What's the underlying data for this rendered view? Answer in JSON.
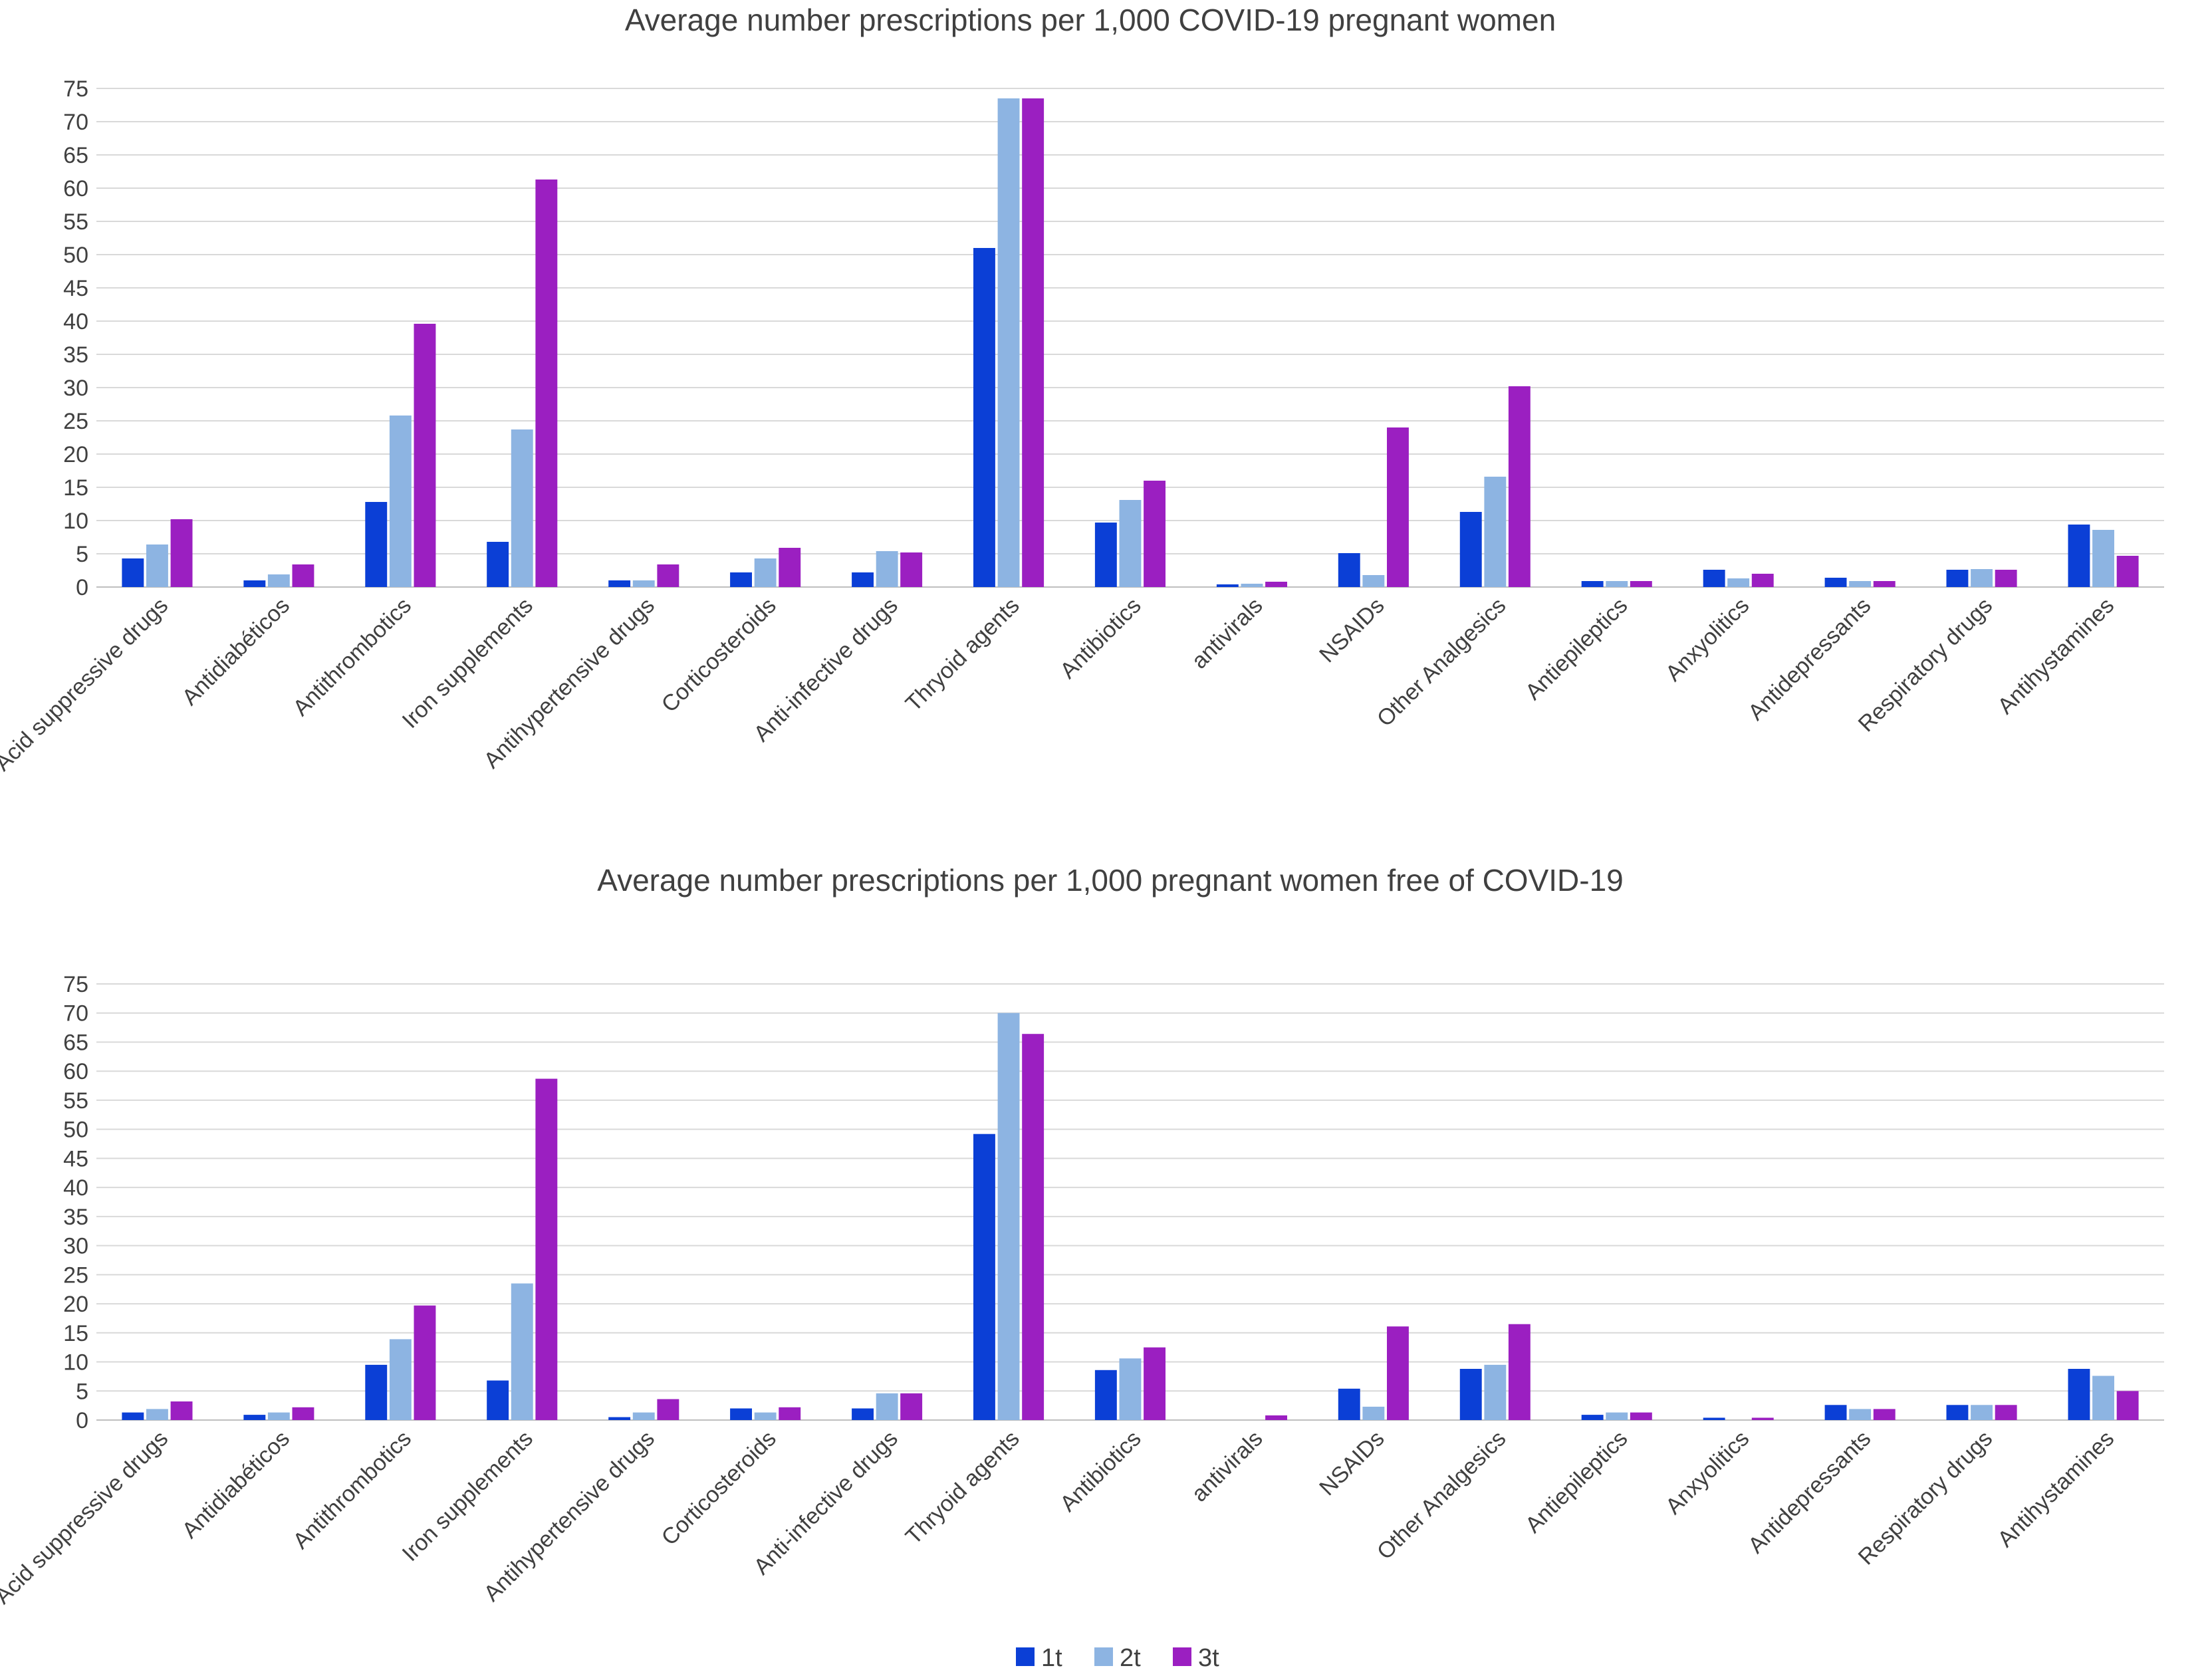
{
  "chart_data": [
    {
      "type": "bar",
      "title": "Average number  prescriptions per 1,000 COVID-19 pregnant women",
      "xlabel": "",
      "ylabel": "",
      "ylim": [
        0,
        75
      ],
      "ytick_step": 5,
      "categories": [
        "Acid suppressive drugs",
        "Antidiabéticos",
        "Antithrombotics",
        "Iron supplements",
        "Antihypertensive drugs",
        "Corticosteroids",
        "Anti-infective drugs",
        "Thryoid agents",
        "Antibiotics",
        "antivirals",
        "NSAIDs",
        "Other Analgesics",
        "Antiepileptics",
        "Anxyolitics",
        "Antidepressants",
        "Respiratory drugs",
        "Antihystamines"
      ],
      "series": [
        {
          "name": "1t",
          "color": "#0b3fd6",
          "values": [
            4.3,
            1.0,
            12.8,
            6.8,
            1.0,
            2.2,
            2.2,
            51,
            9.7,
            0.4,
            5.1,
            11.3,
            0.9,
            2.6,
            1.4,
            2.6,
            9.4
          ]
        },
        {
          "name": "2t",
          "color": "#8db4e2",
          "values": [
            6.4,
            1.9,
            25.8,
            23.7,
            1.0,
            4.3,
            5.4,
            73.5,
            13.1,
            0.5,
            1.8,
            16.6,
            0.9,
            1.3,
            0.9,
            2.7,
            8.6
          ]
        },
        {
          "name": "3t",
          "color": "#9b1fc1",
          "values": [
            10.2,
            3.4,
            39.6,
            61.3,
            3.4,
            5.9,
            5.2,
            73.5,
            16.0,
            0.8,
            24.0,
            30.2,
            0.9,
            2.0,
            0.9,
            2.6,
            4.7
          ]
        }
      ],
      "legend": "none"
    },
    {
      "type": "bar",
      "title": "Average number  prescriptions per 1,000 pregnant women free of COVID-19",
      "xlabel": "",
      "ylabel": "",
      "ylim": [
        0,
        75
      ],
      "ytick_step": 5,
      "categories": [
        "Acid suppressive drugs",
        "Antidiabéticos",
        "Antithrombotics",
        "Iron supplements",
        "Antihypertensive drugs",
        "Corticosteroids",
        "Anti-infective drugs",
        "Thryoid agents",
        "Antibiotics",
        "antivirals",
        "NSAIDs",
        "Other Analgesics",
        "Antiepileptics",
        "Anxyolitics",
        "Antidepressants",
        "Respiratory drugs",
        "Antihystamines"
      ],
      "series": [
        {
          "name": "1t",
          "color": "#0b3fd6",
          "values": [
            1.3,
            0.9,
            9.5,
            6.8,
            0.5,
            2.0,
            2.0,
            49.2,
            8.6,
            0.0,
            5.4,
            8.8,
            0.9,
            0.4,
            2.6,
            2.6,
            8.8
          ]
        },
        {
          "name": "2t",
          "color": "#8db4e2",
          "values": [
            1.9,
            1.3,
            13.9,
            23.5,
            1.3,
            1.3,
            4.6,
            70.0,
            10.6,
            0.0,
            2.3,
            9.5,
            1.3,
            0.0,
            1.9,
            2.6,
            7.6
          ]
        },
        {
          "name": "3t",
          "color": "#9b1fc1",
          "values": [
            3.2,
            2.2,
            19.7,
            58.7,
            3.6,
            2.2,
            4.6,
            66.4,
            12.5,
            0.8,
            16.1,
            16.5,
            1.3,
            0.4,
            1.9,
            2.6,
            5.0
          ]
        }
      ],
      "legend": "bottom-center"
    }
  ]
}
